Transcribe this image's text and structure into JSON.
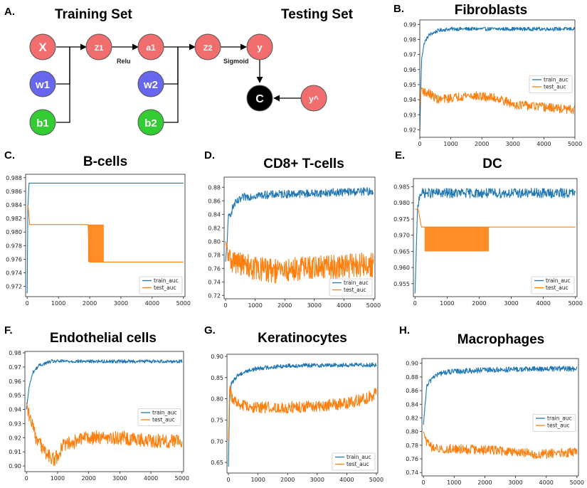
{
  "colors": {
    "train": "#1f77b4",
    "test": "#ff7f0e",
    "node_red": "#f26d6d",
    "node_blue": "#6666ee",
    "node_green": "#33cc33",
    "node_black": "#000000"
  },
  "diagram": {
    "label": "A.",
    "title_left": "Training Set",
    "title_right": "Testing Set",
    "nodes": {
      "x": "X",
      "w1": "w1",
      "b1": "b1",
      "z1": "Z1",
      "a1": "a1",
      "w2": "w2",
      "b2": "b2",
      "z2": "Z2",
      "y": "y",
      "c": "C",
      "yhat": "y^"
    },
    "edge_labels": {
      "relu": "Relu",
      "sigmoid": "Sigmoid"
    }
  },
  "chart_data": [
    {
      "type": "line",
      "label": "B.",
      "title": "Fibroblasts",
      "xlabel": "",
      "ylabel": "",
      "xlim": [
        0,
        5000
      ],
      "ylim": [
        0.915,
        0.993
      ],
      "xticks": [
        "0",
        "1000",
        "2000",
        "3000",
        "4000",
        "5000"
      ],
      "xtick_values": [
        0,
        1000,
        2000,
        3000,
        4000,
        5000
      ],
      "yticks": [
        "0.92",
        "0.93",
        "0.94",
        "0.95",
        "0.96",
        "0.97",
        "0.98",
        "0.99"
      ],
      "ytick_values": [
        0.92,
        0.93,
        0.94,
        0.95,
        0.96,
        0.97,
        0.98,
        0.99
      ],
      "legend": {
        "position": "center-right",
        "entries": [
          "train_auc",
          "test_auc"
        ]
      },
      "series": [
        {
          "name": "train_auc",
          "x": [
            0,
            60,
            150,
            300,
            600,
            1000,
            2000,
            3000,
            4000,
            5000
          ],
          "y": [
            0.919,
            0.968,
            0.978,
            0.983,
            0.986,
            0.987,
            0.987,
            0.987,
            0.987,
            0.987
          ],
          "noise": 0.0012
        },
        {
          "name": "test_auc",
          "x": [
            0,
            50,
            150,
            300,
            600,
            1000,
            1500,
            2000,
            2500,
            3000,
            3500,
            4000,
            4500,
            5000
          ],
          "y": [
            0.935,
            0.948,
            0.945,
            0.944,
            0.94,
            0.941,
            0.943,
            0.942,
            0.941,
            0.937,
            0.936,
            0.935,
            0.934,
            0.933
          ],
          "noise": 0.003
        }
      ]
    },
    {
      "type": "line",
      "label": "C.",
      "title": "B-cells",
      "xlabel": "",
      "ylabel": "",
      "xlim": [
        -50,
        5050
      ],
      "ylim": [
        0.9705,
        0.9885
      ],
      "xticks": [
        "0",
        "1000",
        "2000",
        "3000",
        "4000",
        "5000"
      ],
      "xtick_values": [
        0,
        1000,
        2000,
        3000,
        4000,
        5000
      ],
      "yticks": [
        "0.972",
        "0.974",
        "0.976",
        "0.978",
        "0.980",
        "0.982",
        "0.984",
        "0.986",
        "0.988"
      ],
      "ytick_values": [
        0.972,
        0.974,
        0.976,
        0.978,
        0.98,
        0.982,
        0.984,
        0.986,
        0.988
      ],
      "legend": {
        "position": "lower-right",
        "entries": [
          "train_auc",
          "test_auc"
        ]
      },
      "series": [
        {
          "name": "train_auc",
          "x": [
            0,
            20,
            60,
            5000
          ],
          "y": [
            0.971,
            0.9835,
            0.9872,
            0.9872
          ],
          "noise": 0
        },
        {
          "name": "test_auc",
          "x": [
            0,
            30,
            80,
            1950,
            2000,
            2400,
            2450,
            5000
          ],
          "y": [
            0.9838,
            0.9838,
            0.9811,
            0.9811,
            0.9756,
            0.9756,
            0.9756,
            0.9756
          ],
          "noise": 0,
          "band": [
            1950,
            2450,
            0.9756,
            0.9811
          ]
        }
      ]
    },
    {
      "type": "line",
      "label": "D.",
      "title": "CD8+ T-cells",
      "xlabel": "",
      "ylabel": "",
      "xlim": [
        -50,
        5050
      ],
      "ylim": [
        0.715,
        0.895
      ],
      "xticks": [
        "0",
        "1000",
        "2000",
        "3000",
        "4000",
        "5000"
      ],
      "xtick_values": [
        0,
        1000,
        2000,
        3000,
        4000,
        5000
      ],
      "yticks": [
        "0.72",
        "0.74",
        "0.76",
        "0.78",
        "0.80",
        "0.82",
        "0.84",
        "0.86",
        "0.88"
      ],
      "ytick_values": [
        0.72,
        0.74,
        0.76,
        0.78,
        0.8,
        0.82,
        0.84,
        0.86,
        0.88
      ],
      "legend": {
        "position": "lower-right",
        "entries": [
          "train_auc",
          "test_auc"
        ]
      },
      "series": [
        {
          "name": "train_auc",
          "x": [
            0,
            100,
            300,
            600,
            1000,
            2000,
            3000,
            4000,
            5000
          ],
          "y": [
            0.77,
            0.835,
            0.855,
            0.865,
            0.868,
            0.87,
            0.871,
            0.873,
            0.874
          ],
          "noise": 0.006
        },
        {
          "name": "test_auc",
          "x": [
            0,
            100,
            300,
            1000,
            1800,
            2500,
            3500,
            4500,
            5000
          ],
          "y": [
            0.8,
            0.775,
            0.77,
            0.76,
            0.755,
            0.76,
            0.762,
            0.765,
            0.765
          ],
          "noise": 0.018
        }
      ]
    },
    {
      "type": "line",
      "label": "E.",
      "title": "DC",
      "xlabel": "",
      "ylabel": "",
      "xlim": [
        -50,
        5050
      ],
      "ylim": [
        0.951,
        0.9875
      ],
      "xticks": [
        "0",
        "1000",
        "2000",
        "3000",
        "4000",
        "5000"
      ],
      "xtick_values": [
        0,
        1000,
        2000,
        3000,
        4000,
        5000
      ],
      "yticks": [
        "0.955",
        "0.960",
        "0.965",
        "0.970",
        "0.975",
        "0.980",
        "0.985"
      ],
      "ytick_values": [
        0.955,
        0.96,
        0.965,
        0.97,
        0.975,
        0.98,
        0.985
      ],
      "legend": {
        "position": "lower-right",
        "entries": [
          "train_auc",
          "test_auc"
        ]
      },
      "series": [
        {
          "name": "train_auc",
          "x": [
            0,
            80,
            150,
            5000
          ],
          "y": [
            0.952,
            0.978,
            0.983,
            0.983
          ],
          "noise": 0.0015
        },
        {
          "name": "test_auc",
          "x": [
            0,
            100,
            200,
            300,
            2300,
            2350,
            5000
          ],
          "y": [
            0.978,
            0.978,
            0.9725,
            0.9725,
            0.9725,
            0.9725,
            0.9725
          ],
          "noise": 0,
          "band": [
            300,
            2300,
            0.965,
            0.9725
          ]
        }
      ]
    },
    {
      "type": "line",
      "label": "F.",
      "title": "Endothelial cells",
      "xlabel": "",
      "ylabel": "",
      "xlim": [
        -50,
        5050
      ],
      "ylim": [
        0.896,
        0.981
      ],
      "xticks": [
        "0",
        "1000",
        "2000",
        "3000",
        "4000",
        "5000"
      ],
      "xtick_values": [
        0,
        1000,
        2000,
        3000,
        4000,
        5000
      ],
      "yticks": [
        "0.90",
        "0.91",
        "0.92",
        "0.93",
        "0.94",
        "0.95",
        "0.96",
        "0.97",
        "0.98"
      ],
      "ytick_values": [
        0.9,
        0.91,
        0.92,
        0.93,
        0.94,
        0.95,
        0.96,
        0.97,
        0.98
      ],
      "legend": {
        "position": "center-right",
        "entries": [
          "train_auc",
          "test_auc"
        ]
      },
      "series": [
        {
          "name": "train_auc",
          "x": [
            0,
            80,
            200,
            400,
            800,
            1500,
            3000,
            5000
          ],
          "y": [
            0.94,
            0.955,
            0.966,
            0.971,
            0.974,
            0.974,
            0.974,
            0.974
          ],
          "noise": 0.0012
        },
        {
          "name": "test_auc",
          "x": [
            0,
            100,
            300,
            600,
            900,
            1200,
            2000,
            3000,
            4000,
            5000
          ],
          "y": [
            0.945,
            0.935,
            0.92,
            0.91,
            0.904,
            0.915,
            0.92,
            0.92,
            0.918,
            0.917
          ],
          "noise": 0.005
        }
      ]
    },
    {
      "type": "line",
      "label": "G.",
      "title": "Keratinocytes",
      "xlabel": "",
      "ylabel": "",
      "xlim": [
        -50,
        5050
      ],
      "ylim": [
        0.625,
        0.905
      ],
      "xticks": [
        "0",
        "1000",
        "2000",
        "3000",
        "4000",
        "5000"
      ],
      "xtick_values": [
        0,
        1000,
        2000,
        3000,
        4000,
        5000
      ],
      "yticks": [
        "0.65",
        "0.70",
        "0.75",
        "0.80",
        "0.85",
        "0.90"
      ],
      "ytick_values": [
        0.65,
        0.7,
        0.75,
        0.8,
        0.85,
        0.9
      ],
      "legend": {
        "position": "lower-right",
        "entries": [
          "train_auc",
          "test_auc"
        ]
      },
      "series": [
        {
          "name": "train_auc",
          "x": [
            0,
            40,
            100,
            300,
            600,
            1000,
            2000,
            3000,
            5000
          ],
          "y": [
            0.64,
            0.8,
            0.835,
            0.855,
            0.865,
            0.872,
            0.878,
            0.879,
            0.88
          ],
          "noise": 0.005
        },
        {
          "name": "test_auc",
          "x": [
            0,
            40,
            100,
            300,
            1000,
            2000,
            3000,
            4000,
            4600,
            5000
          ],
          "y": [
            0.7,
            0.83,
            0.805,
            0.785,
            0.78,
            0.78,
            0.782,
            0.79,
            0.8,
            0.812
          ],
          "noise": 0.014
        }
      ]
    },
    {
      "type": "line",
      "label": "H.",
      "title": "Macrophages",
      "xlabel": "",
      "ylabel": "",
      "xlim": [
        -50,
        5050
      ],
      "ylim": [
        0.735,
        0.907
      ],
      "xticks": [
        "0",
        "1000",
        "2000",
        "3000",
        "4000",
        "5000"
      ],
      "xtick_values": [
        0,
        1000,
        2000,
        3000,
        4000,
        5000
      ],
      "yticks": [
        "0.74",
        "0.76",
        "0.78",
        "0.80",
        "0.82",
        "0.84",
        "0.86",
        "0.88",
        "0.90"
      ],
      "ytick_values": [
        0.74,
        0.76,
        0.78,
        0.8,
        0.82,
        0.84,
        0.86,
        0.88,
        0.9
      ],
      "legend": {
        "position": "center-right",
        "entries": [
          "train_auc",
          "test_auc"
        ]
      },
      "series": [
        {
          "name": "train_auc",
          "x": [
            0,
            100,
            300,
            600,
            1000,
            2000,
            3000,
            4000,
            5000
          ],
          "y": [
            0.81,
            0.865,
            0.88,
            0.886,
            0.888,
            0.89,
            0.891,
            0.892,
            0.892
          ],
          "noise": 0.004
        },
        {
          "name": "test_auc",
          "x": [
            0,
            100,
            300,
            800,
            1500,
            2500,
            3200,
            3700,
            4200,
            5000
          ],
          "y": [
            0.8,
            0.785,
            0.775,
            0.775,
            0.774,
            0.772,
            0.77,
            0.766,
            0.768,
            0.77
          ],
          "noise": 0.007
        }
      ]
    }
  ]
}
